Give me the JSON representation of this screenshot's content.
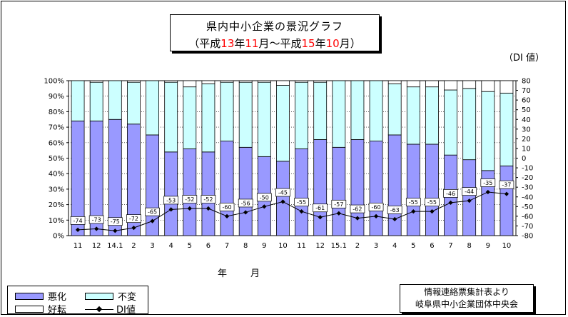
{
  "title": {
    "line1": "県内中小企業の景況グラフ",
    "line2_parts": [
      "（平成",
      "13",
      "年",
      "11",
      "月～平成",
      "15",
      "年",
      "10",
      "月）"
    ]
  },
  "di_unit_label": "（DI 値）",
  "xlabel": "年　月",
  "legend": {
    "worse": "悪化",
    "same": "不変",
    "better": "好転",
    "di": "DI値"
  },
  "source": {
    "line1": "情報連絡票集計表より",
    "line2": "岐阜県中小企業団体中央会"
  },
  "colors": {
    "worse": "#9999ff",
    "same": "#ccffff",
    "better": "#ffffff",
    "line": "#000000",
    "title_red": "#ff0000"
  },
  "chart_data": {
    "type": "bar",
    "stacked": true,
    "categories": [
      "11",
      "12",
      "14.1",
      "2",
      "3",
      "4",
      "5",
      "6",
      "7",
      "8",
      "9",
      "10",
      "11",
      "12",
      "15.1",
      "2",
      "3",
      "4",
      "5",
      "6",
      "7",
      "8",
      "9",
      "10"
    ],
    "series": [
      {
        "name": "悪化",
        "values": [
          74,
          74,
          75,
          72,
          65,
          54,
          56,
          54,
          61,
          57,
          51,
          48,
          56,
          62,
          57,
          62,
          61,
          65,
          59,
          59,
          52,
          49,
          42,
          45
        ]
      },
      {
        "name": "不変",
        "values": [
          26,
          25,
          25,
          27,
          35,
          45,
          40,
          44,
          38,
          42,
          48,
          49,
          43,
          37,
          43,
          38,
          39,
          33,
          37,
          37,
          42,
          46,
          51,
          47
        ]
      },
      {
        "name": "好転",
        "values": [
          0,
          1,
          0,
          1,
          0,
          1,
          4,
          2,
          1,
          1,
          1,
          3,
          1,
          1,
          0,
          0,
          0,
          2,
          4,
          4,
          6,
          5,
          7,
          8
        ]
      },
      {
        "name": "DI値",
        "values": [
          -74,
          -73,
          -75,
          -72,
          -65,
          -53,
          -52,
          -52,
          -60,
          -56,
          -50,
          -45,
          -55,
          -61,
          -57,
          -62,
          -60,
          -63,
          -55,
          -55,
          -46,
          -44,
          -35,
          -37
        ]
      }
    ],
    "y_left": {
      "min": 0,
      "max": 100,
      "step": 10,
      "ticks": [
        "0%",
        "10%",
        "20%",
        "30%",
        "40%",
        "50%",
        "60%",
        "70%",
        "80%",
        "90%",
        "100%"
      ]
    },
    "y_right": {
      "min": -80,
      "max": 80,
      "step": 10,
      "ticks": [
        "-80",
        "-70",
        "-60",
        "-50",
        "-40",
        "-30",
        "-20",
        "-10",
        "0",
        "10",
        "20",
        "30",
        "40",
        "50",
        "60",
        "70",
        "80"
      ]
    }
  }
}
